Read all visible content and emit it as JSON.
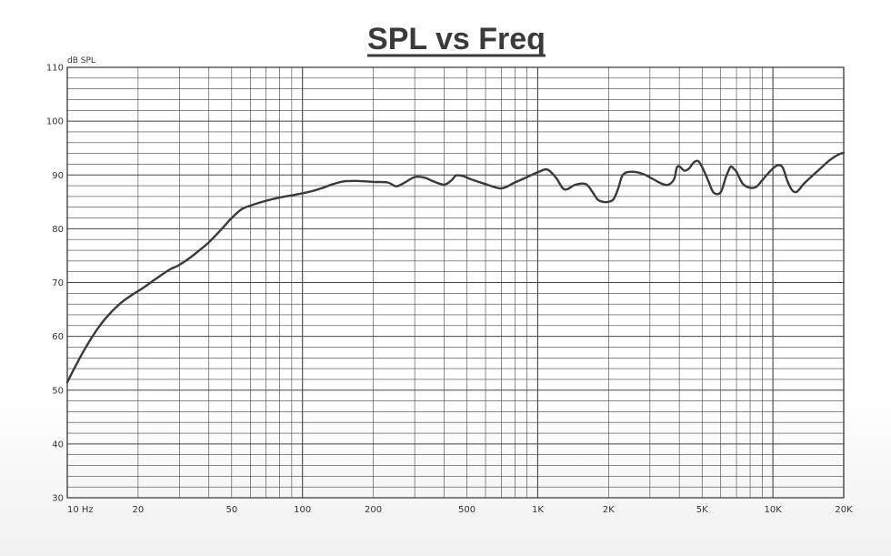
{
  "chart_data": {
    "type": "line",
    "title": "SPL vs Freq",
    "ylabel": "dB SPL",
    "xlabel": "",
    "x_scale": "log",
    "xlim": [
      10,
      20000
    ],
    "ylim": [
      30,
      110
    ],
    "grid": true,
    "y_ticks": [
      30,
      40,
      50,
      60,
      70,
      80,
      90,
      100,
      110
    ],
    "x_ticks": [
      {
        "value": 10,
        "label": "10 Hz"
      },
      {
        "value": 20,
        "label": "20"
      },
      {
        "value": 50,
        "label": "50"
      },
      {
        "value": 100,
        "label": "100"
      },
      {
        "value": 200,
        "label": "200"
      },
      {
        "value": 500,
        "label": "500"
      },
      {
        "value": 1000,
        "label": "1K"
      },
      {
        "value": 2000,
        "label": "2K"
      },
      {
        "value": 5000,
        "label": "5K"
      },
      {
        "value": 10000,
        "label": "10K"
      },
      {
        "value": 20000,
        "label": "20K"
      }
    ],
    "series": [
      {
        "color": "#3a3a3a",
        "x": [
          10,
          11,
          12,
          13.5,
          15,
          17,
          19,
          21,
          24,
          27,
          30,
          33,
          36,
          40,
          45,
          50,
          55,
          60,
          70,
          80,
          90,
          100,
          110,
          120,
          135,
          150,
          170,
          200,
          230,
          250,
          270,
          300,
          330,
          360,
          400,
          430,
          450,
          480,
          520,
          600,
          700,
          800,
          900,
          1000,
          1100,
          1200,
          1300,
          1450,
          1600,
          1700,
          1800,
          1900,
          2000,
          2100,
          2200,
          2300,
          2500,
          2800,
          3100,
          3400,
          3600,
          3800,
          3900,
          4000,
          4200,
          4400,
          4600,
          4800,
          5000,
          5300,
          5600,
          6000,
          6300,
          6600,
          6800,
          7000,
          7200,
          7500,
          8000,
          8500,
          9000,
          9500,
          10000,
          10500,
          11000,
          11500,
          12000,
          12500,
          13000,
          13500,
          14500,
          16000,
          17500,
          19000,
          20000
        ],
        "y": [
          51.5,
          55.0,
          58.0,
          61.5,
          64.0,
          66.3,
          67.8,
          69.0,
          70.8,
          72.3,
          73.3,
          74.5,
          75.8,
          77.5,
          79.8,
          82.0,
          83.6,
          84.3,
          85.2,
          85.8,
          86.2,
          86.6,
          87.0,
          87.5,
          88.3,
          88.8,
          88.9,
          88.7,
          88.6,
          87.9,
          88.5,
          89.6,
          89.5,
          88.8,
          88.2,
          89.0,
          89.9,
          89.8,
          89.2,
          88.3,
          87.5,
          88.6,
          89.6,
          90.5,
          91.0,
          89.4,
          87.3,
          88.2,
          88.3,
          87.0,
          85.4,
          85.0,
          85.0,
          85.5,
          87.5,
          90.0,
          90.6,
          90.2,
          89.2,
          88.3,
          88.2,
          89.2,
          91.3,
          91.6,
          90.8,
          91.2,
          92.3,
          92.6,
          91.5,
          89.0,
          86.7,
          86.8,
          89.5,
          91.5,
          91.2,
          90.6,
          89.5,
          88.2,
          87.6,
          87.8,
          89.0,
          90.2,
          91.2,
          91.8,
          91.4,
          89.0,
          87.3,
          86.8,
          87.4,
          88.3,
          89.6,
          91.3,
          92.8,
          93.8,
          94.1
        ]
      }
    ]
  }
}
